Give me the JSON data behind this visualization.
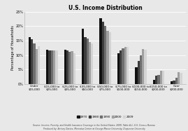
{
  "title": "U.S. Income Distribution",
  "ylabel": "Percentage of Households",
  "categories": [
    "Under\n$15,000",
    "$15,000 to\n$25,000",
    "$25,000 to\n$35,000",
    "$35,000 to\n$50,000",
    "$50,000 to\n$75,000",
    "$75,000 to\n$100,000",
    "$100,000 to\n$150,000",
    "$150,000 to\n$200,000",
    "Over\n$200,000"
  ],
  "series": {
    "1970": [
      16.3,
      11.8,
      11.9,
      19.1,
      22.8,
      10.5,
      5.8,
      1.3,
      0.8
    ],
    "1980": [
      15.6,
      11.6,
      11.7,
      16.3,
      21.5,
      11.7,
      7.9,
      2.8,
      1.2
    ],
    "1990": [
      13.9,
      11.5,
      11.0,
      15.7,
      20.0,
      12.3,
      10.0,
      3.1,
      2.2
    ],
    "2000": [
      12.0,
      11.7,
      11.4,
      14.5,
      18.5,
      12.8,
      12.0,
      4.5,
      4.0
    ],
    "2009": [
      13.0,
      11.7,
      10.7,
      14.1,
      18.0,
      12.8,
      11.9,
      4.5,
      3.8
    ]
  },
  "colors": {
    "1970": "#111111",
    "1980": "#3d3d3d",
    "1990": "#6e6e6e",
    "2000": "#a0a0a0",
    "2009": "#d4d4d4"
  },
  "ylim": [
    0,
    25
  ],
  "yticks": [
    0,
    5,
    10,
    15,
    20,
    25
  ],
  "ytick_labels": [
    "0%",
    "5%",
    "10%",
    "15%",
    "20%",
    "25%"
  ],
  "source_text": "Source: Income, Poverty, and Health Insurance Coverage in the United States: 2009, Table A-1, U.S. Census Bureau\nProduced by: Antony Davies, Mercatus Center at George Mason University, Duquesne University",
  "legend_years": [
    "1970",
    "1980",
    "1990",
    "2000",
    "2009"
  ],
  "bg_color": "#e8e8e8"
}
